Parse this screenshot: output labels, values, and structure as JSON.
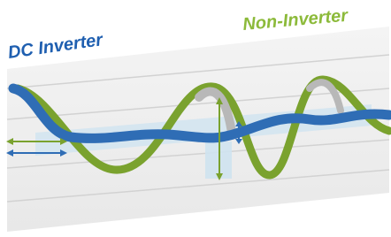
{
  "labels": {
    "dc_inverter": "DC Inverter",
    "non_inverter": "Non-Inverter"
  }
}
